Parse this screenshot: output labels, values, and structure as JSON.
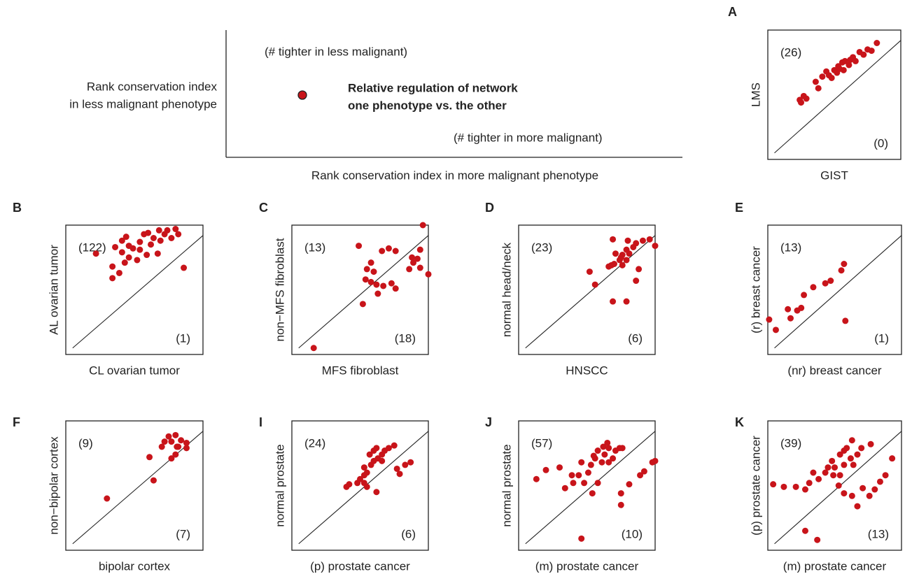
{
  "key": {
    "y_label": [
      "Rank conservation index",
      "in less malignant phenotype"
    ],
    "x_label": "Rank conservation index in more malignant phenotype",
    "upper_note": "(# tighter in less malignant)",
    "lower_note": "(# tighter in more malignant)",
    "dot_label": [
      "Relative regulation of network",
      "one phenotype vs. the other"
    ]
  },
  "chart_data": [
    {
      "type": "scatter",
      "panel_label": "A",
      "x_label": "GIST",
      "y_label": "LMS",
      "annotations": [
        "(26)",
        "(0)"
      ],
      "color": "#c8141a",
      "xlim": [
        0,
        100
      ],
      "ylim": [
        0,
        100
      ],
      "x": [
        24,
        27,
        29,
        25,
        36,
        38,
        41,
        44,
        46,
        48,
        50,
        52,
        53,
        54,
        56,
        57,
        58,
        61,
        62,
        64,
        66,
        69,
        72,
        75,
        78,
        82
      ],
      "y": [
        46,
        49,
        47,
        44,
        60,
        55,
        64,
        68,
        65,
        63,
        69,
        67,
        72,
        70,
        75,
        69,
        76,
        73,
        77,
        79,
        76,
        83,
        81,
        85,
        84,
        90
      ]
    },
    {
      "type": "scatter",
      "panel_label": "B",
      "x_label": "CL ovarian tumor",
      "y_label": "AL ovarian tumor",
      "annotations": [
        "(122)",
        "(1)"
      ],
      "color": "#c8141a",
      "xlim": [
        0,
        100
      ],
      "ylim": [
        0,
        100
      ],
      "x": [
        22,
        86,
        34,
        39,
        43,
        46,
        41,
        49,
        54,
        57,
        62,
        64,
        67,
        69,
        72,
        74,
        80,
        77,
        59,
        52,
        44,
        36,
        54,
        46,
        68,
        60,
        82,
        41,
        34
      ],
      "y": [
        78,
        67,
        59,
        63,
        71,
        75,
        79,
        82,
        87,
        93,
        85,
        90,
        78,
        88,
        93,
        96,
        97,
        90,
        77,
        73,
        91,
        83,
        81,
        84,
        96,
        94,
        93,
        88,
        68
      ]
    },
    {
      "type": "scatter",
      "panel_label": "C",
      "x_label": "MFS fibroblast",
      "y_label": "non−MFS fibroblast",
      "annotations": [
        "(13)",
        "(18)"
      ],
      "color": "#c8141a",
      "xlim": [
        0,
        100
      ],
      "ylim": [
        0,
        100
      ],
      "x": [
        16,
        96,
        100,
        49,
        52,
        54,
        58,
        60,
        63,
        66,
        67,
        71,
        73,
        76,
        62,
        55,
        89,
        92,
        94,
        94,
        86,
        88,
        58,
        76
      ],
      "y": [
        5,
        100,
        62,
        84,
        39,
        58,
        71,
        64,
        47,
        80,
        53,
        82,
        55,
        80,
        54,
        66,
        71,
        74,
        67,
        81,
        66,
        75,
        56,
        51
      ]
    },
    {
      "type": "scatter",
      "panel_label": "D",
      "x_label": "HNSCC",
      "y_label": "normal head/neck",
      "annotations": [
        "(23)",
        "(6)"
      ],
      "color": "#c8141a",
      "xlim": [
        0,
        100
      ],
      "ylim": [
        0,
        100
      ],
      "x": [
        69,
        80,
        52,
        56,
        69,
        79,
        86,
        88,
        100,
        66,
        70,
        74,
        71,
        76,
        79,
        81,
        84,
        86,
        91,
        96,
        68,
        76,
        79,
        75
      ],
      "y": [
        89,
        88,
        64,
        54,
        41,
        41,
        57,
        66,
        84,
        68,
        70,
        73,
        78,
        77,
        81,
        78,
        83,
        86,
        88,
        89,
        69,
        69,
        73,
        75
      ]
    },
    {
      "type": "scatter",
      "panel_label": "E",
      "x_label": "(nr) breast cancer",
      "y_label": "(r) breast cancer",
      "annotations": [
        "(13)",
        "(1)"
      ],
      "color": "#c8141a",
      "xlim": [
        0,
        100
      ],
      "ylim": [
        0,
        100
      ],
      "x": [
        1,
        6,
        15,
        17,
        22,
        25,
        27,
        34,
        43,
        47,
        55,
        57,
        58
      ],
      "y": [
        27,
        19,
        35,
        28,
        34,
        36,
        46,
        52,
        55,
        57,
        65,
        70,
        26
      ]
    },
    {
      "type": "scatter",
      "panel_label": "F",
      "x_label": "bipolar cortex",
      "y_label": "non−bipolar cortex",
      "annotations": [
        "(9)",
        "(7)"
      ],
      "color": "#c8141a",
      "xlim": [
        0,
        100
      ],
      "ylim": [
        0,
        100
      ],
      "x": [
        30,
        64,
        61,
        70,
        72,
        75,
        77,
        80,
        81,
        84,
        88,
        88,
        77,
        80,
        82
      ],
      "y": [
        40,
        54,
        72,
        80,
        84,
        88,
        84,
        89,
        80,
        85,
        83,
        79,
        71,
        74,
        80
      ]
    },
    {
      "type": "scatter",
      "panel_label": "I",
      "x_label": "(p) prostate cancer",
      "y_label": "normal prostate",
      "annotations": [
        "(24)",
        "(6)"
      ],
      "color": "#c8141a",
      "xlim": [
        0,
        100
      ],
      "ylim": [
        0,
        100
      ],
      "x": [
        40,
        42,
        48,
        50,
        53,
        55,
        53,
        58,
        60,
        63,
        66,
        57,
        60,
        62,
        68,
        71,
        75,
        66,
        53,
        62,
        77,
        79,
        83,
        87,
        55
      ],
      "y": [
        49,
        51,
        52,
        55,
        58,
        60,
        64,
        66,
        69,
        71,
        74,
        74,
        77,
        79,
        77,
        79,
        81,
        69,
        52,
        45,
        63,
        59,
        66,
        68,
        49
      ]
    },
    {
      "type": "scatter",
      "panel_label": "J",
      "x_label": "(m) prostate cancer",
      "y_label": "normal prostate",
      "annotations": [
        "(57)",
        "(10)"
      ],
      "color": "#c8141a",
      "xlim": [
        0,
        100
      ],
      "ylim": [
        0,
        100
      ],
      "x": [
        13,
        20,
        30,
        34,
        40,
        44,
        48,
        51,
        53,
        46,
        56,
        58,
        61,
        63,
        66,
        69,
        71,
        74,
        76,
        55,
        62,
        65,
        58,
        54,
        46,
        75,
        75,
        81,
        89,
        92,
        98,
        100,
        39,
        66
      ],
      "y": [
        55,
        62,
        64,
        48,
        52,
        58,
        52,
        60,
        66,
        68,
        71,
        77,
        68,
        74,
        79,
        71,
        77,
        79,
        79,
        73,
        80,
        83,
        52,
        44,
        9,
        35,
        44,
        51,
        58,
        61,
        68,
        69,
        58,
        68
      ]
    },
    {
      "type": "scatter",
      "panel_label": "K",
      "x_label": "(m) prostate cancer",
      "y_label": "(p) prostate cancer",
      "annotations": [
        "(39)",
        "(13)"
      ],
      "color": "#c8141a",
      "xlim": [
        0,
        100
      ],
      "ylim": [
        0,
        100
      ],
      "x": [
        4,
        12,
        21,
        28,
        31,
        34,
        38,
        43,
        45,
        48,
        50,
        54,
        57,
        59,
        62,
        63,
        67,
        70,
        77,
        57,
        53,
        57,
        63,
        67,
        71,
        76,
        80,
        84,
        88,
        93,
        28,
        37,
        54,
        49,
        64
      ],
      "y": [
        51,
        49,
        49,
        47,
        52,
        60,
        55,
        60,
        64,
        69,
        64,
        74,
        77,
        79,
        71,
        85,
        74,
        79,
        82,
        66,
        50,
        44,
        42,
        34,
        48,
        42,
        47,
        53,
        58,
        71,
        15,
        8,
        58,
        58,
        66
      ]
    }
  ]
}
